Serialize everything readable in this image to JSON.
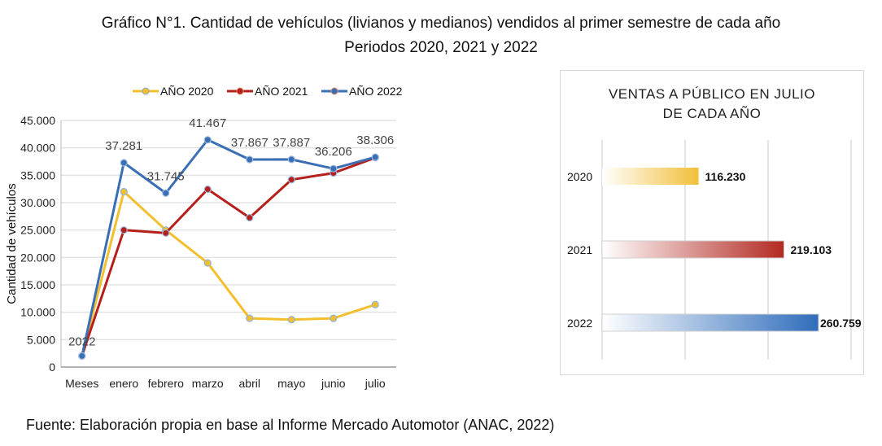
{
  "title_line1": "Gráfico N°1. Cantidad de vehículos (livianos y medianos) vendidos al primer semestre de cada año",
  "title_line2": "Periodos 2020, 2021 y 2022",
  "source": "Fuente: Elaboración propia en base al Informe Mercado Automotor (ANAC, 2022)",
  "chart_data": [
    {
      "type": "line",
      "ylabel": "Cantidad de vehículos",
      "xlabel": "",
      "categories": [
        "Meses",
        "enero",
        "febrero",
        "marzo",
        "abril",
        "mayo",
        "junio",
        "julio"
      ],
      "ylim": [
        0,
        45000
      ],
      "yticks": [
        0,
        5000,
        10000,
        15000,
        20000,
        25000,
        30000,
        35000,
        40000,
        45000
      ],
      "ytick_labels": [
        "0",
        "5.000",
        "10.000",
        "15.000",
        "20.000",
        "25.000",
        "30.000",
        "35.000",
        "40.000",
        "45.000"
      ],
      "grid": true,
      "legend": "top",
      "series": [
        {
          "name": "AÑO 2020",
          "color": "#f4bf2f",
          "values": [
            2022,
            32000,
            25000,
            19000,
            8900,
            8650,
            8900,
            11400
          ]
        },
        {
          "name": "AÑO 2021",
          "color": "#b5201c",
          "values": [
            2022,
            25000,
            24450,
            32450,
            27250,
            34200,
            35400,
            38200
          ]
        },
        {
          "name": "AÑO 2022",
          "color": "#3a6fb5",
          "values": [
            2022,
            37281,
            31745,
            41467,
            37867,
            37887,
            36206,
            38306
          ],
          "data_labels": [
            "2022",
            "37.281",
            "31.745",
            "41.467",
            "37.867",
            "37.887",
            "36.206",
            "38.306"
          ]
        }
      ]
    },
    {
      "type": "bar",
      "orientation": "horizontal",
      "title_line1": "VENTAS A PÚBLICO EN JULIO",
      "title_line2": "DE CADA AÑO",
      "categories": [
        "2020",
        "2021",
        "2022"
      ],
      "values": [
        116230,
        219103,
        260759
      ],
      "data_labels": [
        "116.230",
        "219.103",
        "260.759"
      ],
      "colors": [
        "#f2bf3a",
        "#b32a22",
        "#2f6dbb"
      ],
      "xlim": [
        0,
        300000
      ],
      "grid": true
    }
  ]
}
